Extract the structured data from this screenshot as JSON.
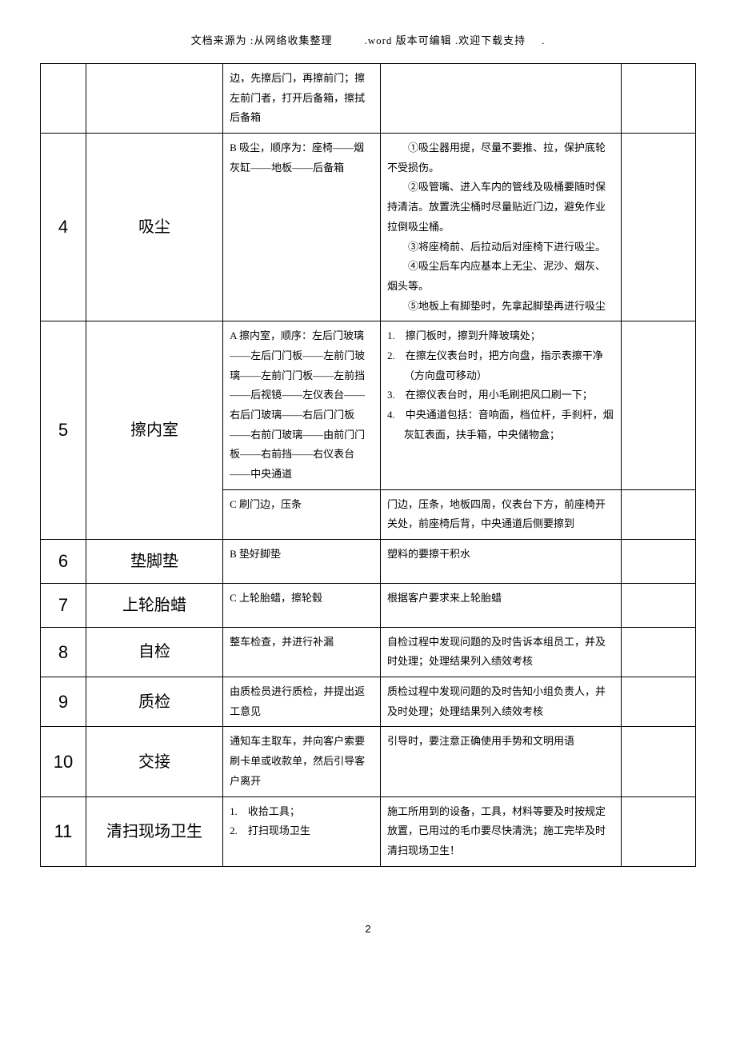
{
  "header": {
    "p1": "文档来源为 :从网络收集整理",
    "p2": ".word 版本可编辑 .欢迎下载支持",
    "p3": "."
  },
  "rows": [
    {
      "num": "",
      "step": "",
      "col3": "边，先擦后门，再擦前门；擦左前门者，打开后备箱，擦拭后备箱",
      "col4": "",
      "row0partial": true
    },
    {
      "num": "4",
      "step": "吸尘",
      "col3": "B 吸尘，顺序为：座椅——烟灰缸——地板——后备箱",
      "col4": "　　①吸尘器用提，尽量不要推、拉，保护底轮不受损伤。\n　　②吸管嘴、进入车内的管线及吸桶要随时保持清洁。放置洗尘桶时尽量贴近门边，避免作业拉倒吸尘桶。\n　　③将座椅前、后拉动后对座椅下进行吸尘。\n　　④吸尘后车内应基本上无尘、泥沙、烟灰、烟头等。\n　　⑤地板上有脚垫时，先拿起脚垫再进行吸尘"
    },
    {
      "num": "5",
      "step": "擦内室",
      "subrows": [
        {
          "col3": "A 擦内室，顺序：左后门玻璃——左后门门板——左前门玻璃——左前门门板——左前挡——后视镜——左仪表台——右后门玻璃——右后门门板——右前门玻璃——由前门门板——右前挡——右仪表台——中央通道",
          "col4list": [
            "擦门板时，擦到升降玻璃处；",
            "在擦左仪表台时，把方向盘，指示表擦干净（方向盘可移动）",
            "在擦仪表台时，用小毛刷把风口刷一下；",
            "中央通道包括：音响面，档位杆，手刹杆，烟灰缸表面，扶手箱，中央储物盒；"
          ]
        },
        {
          "col3": "C 刷门边，压条",
          "col4": "门边，压条，地板四周，仪表台下方，前座椅开关处，前座椅后背，中央通道后侧要擦到"
        }
      ]
    },
    {
      "num": "6",
      "step": "垫脚垫",
      "col3": "B 垫好脚垫",
      "col4": "塑料的要擦干积水"
    },
    {
      "num": "7",
      "step": "上轮胎蜡",
      "col3": "C 上轮胎蜡，擦轮毂",
      "col4": "根据客户要求来上轮胎蜡"
    },
    {
      "num": "8",
      "step": "自检",
      "col3": "整车检查，并进行补漏",
      "col4": "自检过程中发现问题的及时告诉本组员工，并及时处理；处理结果列入绩效考核"
    },
    {
      "num": "9",
      "step": "质检",
      "col3": "由质检员进行质检，并提出返工意见",
      "col4": "质检过程中发现问题的及时告知小组负责人，并及时处理；处理结果列入绩效考核"
    },
    {
      "num": "10",
      "step": "交接",
      "col3": "通知车主取车，并向客户索要刷卡单或收款单，然后引导客户离开",
      "col4": "引导时，要注意正确使用手势和文明用语"
    },
    {
      "num": "11",
      "step": "清扫现场卫生",
      "col3list": [
        "收拾工具；",
        "打扫现场卫生"
      ],
      "col4": "施工所用到的设备，工具，材料等要及时按规定放置，已用过的毛巾要尽快清洗；施工完毕及时清扫现场卫生！"
    }
  ],
  "pageNumber": "2"
}
